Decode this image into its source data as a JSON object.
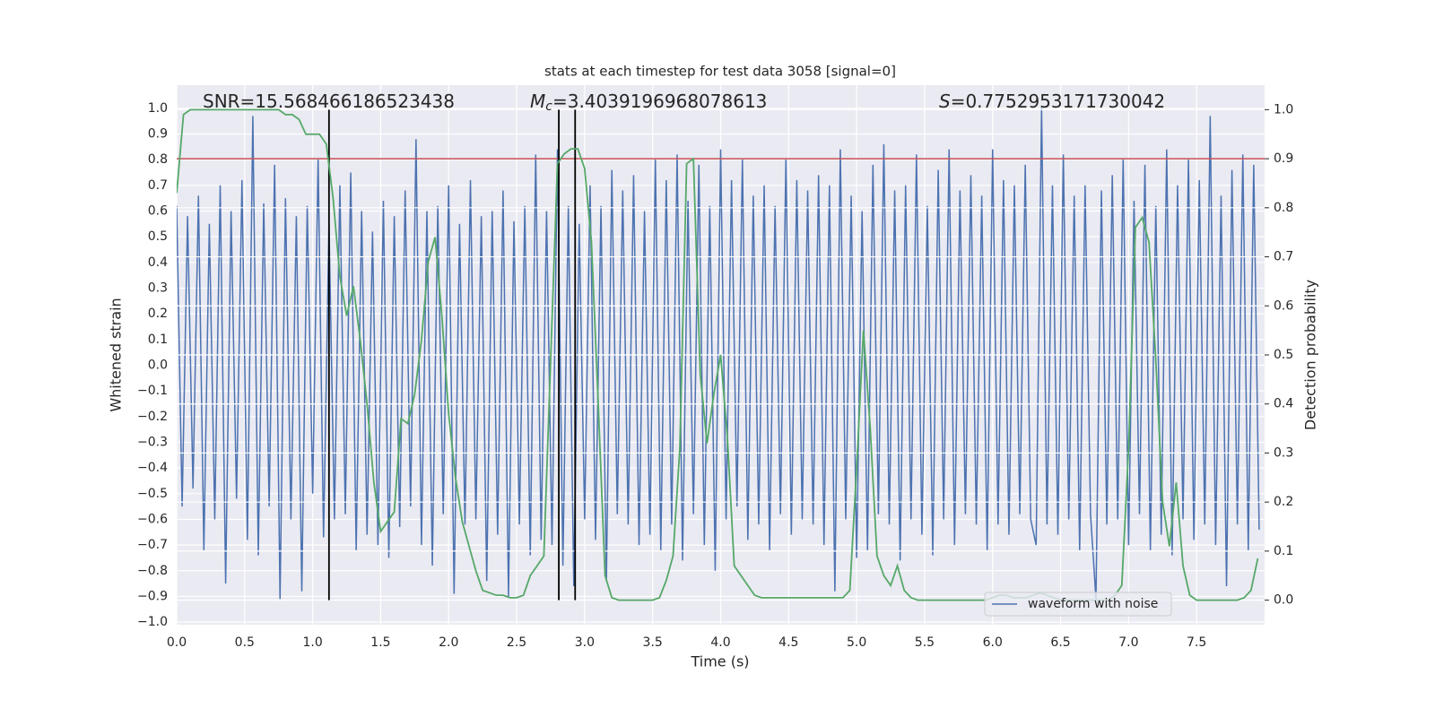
{
  "chart_data": {
    "type": "line",
    "title": "stats at each timestep for test data 3058 [signal=0]",
    "xlabel": "Time (s)",
    "ylabel": "Whitened strain",
    "y2label": "Detection probability",
    "xlim": [
      0,
      8
    ],
    "ylim": [
      -1.01,
      1.09
    ],
    "y2lim": [
      -0.05,
      1.05
    ],
    "xticks": [
      {
        "value": 0,
        "label": "0.0"
      },
      0.5,
      {
        "value": 1,
        "label": "1.0"
      },
      1.5,
      {
        "value": 2,
        "label": "2.0"
      },
      2.5,
      {
        "value": 3,
        "label": "3.0"
      },
      3.5,
      {
        "value": 4,
        "label": "4.0"
      },
      4.5,
      {
        "value": 5,
        "label": "5.0"
      },
      5.5,
      {
        "value": 6,
        "label": "6.0"
      },
      6.5,
      {
        "value": 7,
        "label": "7.0"
      },
      7.5
    ],
    "yticks": [
      {
        "value": -1,
        "label": "−1.0"
      },
      {
        "value": -0.9,
        "label": "−0.9"
      },
      {
        "value": -0.8,
        "label": "−0.8"
      },
      {
        "value": -0.7,
        "label": "−0.7"
      },
      {
        "value": -0.6,
        "label": "−0.6"
      },
      {
        "value": -0.5,
        "label": "−0.5"
      },
      {
        "value": -0.4,
        "label": "−0.4"
      },
      {
        "value": -0.3,
        "label": "−0.3"
      },
      {
        "value": -0.2,
        "label": "−0.2"
      },
      {
        "value": -0.1,
        "label": "−0.1"
      },
      {
        "value": 0,
        "label": "0.0"
      },
      0.1,
      0.2,
      0.3,
      0.4,
      0.5,
      0.6,
      0.7,
      0.8,
      0.9,
      {
        "value": 1,
        "label": "1.0"
      }
    ],
    "y2ticks": [
      {
        "value": 0,
        "label": "0.0"
      },
      0.1,
      0.2,
      0.3,
      0.4,
      0.5,
      0.6,
      0.7,
      0.8,
      0.9,
      {
        "value": 1,
        "label": "1.0"
      }
    ],
    "grid": true,
    "legend": "lower right",
    "annotations": [
      {
        "text": "SNR=15.568466186523438"
      },
      {
        "symbol": "M",
        "subscript": "c",
        "text": "=3.4039196968078613"
      },
      {
        "symbol": "S",
        "text": "=0.7752953171730042"
      }
    ],
    "hlines": [
      {
        "value": 0.9,
        "axis": "y2",
        "color": "#c44e52"
      }
    ],
    "vlines": {
      "x": [
        1.12,
        2.81,
        2.93
      ],
      "y2": [
        0,
        1
      ],
      "color": "#000000"
    },
    "series": [
      {
        "name": "waveform with noise",
        "color": "#4c72b0",
        "x": [
          0,
          0.04,
          0.08,
          0.12,
          0.16,
          0.2,
          0.24,
          0.28,
          0.32,
          0.36,
          0.4,
          0.44,
          0.48,
          0.52,
          0.56,
          0.6,
          0.64,
          0.68,
          0.72,
          0.76,
          0.8,
          0.84,
          0.88,
          0.92,
          0.96,
          1,
          1.04,
          1.08,
          1.12,
          1.16,
          1.2,
          1.24,
          1.28,
          1.32,
          1.36,
          1.4,
          1.44,
          1.48,
          1.52,
          1.56,
          1.6,
          1.64,
          1.68,
          1.72,
          1.76,
          1.8,
          1.84,
          1.88,
          1.92,
          1.96,
          2,
          2.04,
          2.08,
          2.12,
          2.16,
          2.2,
          2.24,
          2.28,
          2.32,
          2.36,
          2.4,
          2.44,
          2.48,
          2.52,
          2.56,
          2.6,
          2.64,
          2.68,
          2.72,
          2.76,
          2.8,
          2.84,
          2.88,
          2.92,
          2.96,
          3,
          3.04,
          3.08,
          3.12,
          3.16,
          3.2,
          3.24,
          3.28,
          3.32,
          3.36,
          3.4,
          3.44,
          3.48,
          3.52,
          3.56,
          3.6,
          3.64,
          3.68,
          3.72,
          3.76,
          3.8,
          3.84,
          3.88,
          3.92,
          3.96,
          4,
          4.04,
          4.08,
          4.12,
          4.16,
          4.2,
          4.24,
          4.28,
          4.32,
          4.36,
          4.4,
          4.44,
          4.48,
          4.52,
          4.56,
          4.6,
          4.64,
          4.68,
          4.72,
          4.76,
          4.8,
          4.84,
          4.88,
          4.92,
          4.96,
          5,
          5.04,
          5.08,
          5.12,
          5.16,
          5.2,
          5.24,
          5.28,
          5.32,
          5.36,
          5.4,
          5.44,
          5.48,
          5.52,
          5.56,
          5.6,
          5.64,
          5.68,
          5.72,
          5.76,
          5.8,
          5.84,
          5.88,
          5.92,
          5.96,
          6,
          6.04,
          6.08,
          6.12,
          6.16,
          6.2,
          6.24,
          6.28,
          6.32,
          6.36,
          6.4,
          6.44,
          6.48,
          6.52,
          6.56,
          6.6,
          6.64,
          6.68,
          6.72,
          6.76,
          6.8,
          6.84,
          6.88,
          6.92,
          6.96,
          7,
          7.04,
          7.08,
          7.12,
          7.16,
          7.2,
          7.24,
          7.28,
          7.32,
          7.36,
          7.4,
          7.44,
          7.48,
          7.52,
          7.56,
          7.6,
          7.64,
          7.68,
          7.72,
          7.76,
          7.8,
          7.84,
          7.88,
          7.92,
          7.96
        ],
        "values": [
          0.62,
          -0.55,
          0.58,
          -0.48,
          0.66,
          -0.72,
          0.55,
          -0.6,
          0.7,
          -0.85,
          0.6,
          -0.52,
          0.72,
          -0.68,
          0.97,
          -0.74,
          0.63,
          -0.55,
          0.78,
          -0.91,
          0.65,
          -0.6,
          0.58,
          -0.88,
          0.62,
          -0.5,
          0.8,
          -0.67,
          0.55,
          -0.6,
          0.7,
          -0.58,
          0.75,
          -0.72,
          0.6,
          -0.66,
          0.52,
          -0.7,
          0.64,
          -0.75,
          0.58,
          -0.63,
          0.68,
          -0.55,
          0.88,
          -0.7,
          0.6,
          -0.78,
          0.62,
          -0.58,
          0.7,
          -0.89,
          0.55,
          -0.62,
          0.72,
          -0.6,
          0.58,
          -0.84,
          0.6,
          -0.66,
          0.68,
          -0.9,
          0.56,
          -0.62,
          0.62,
          -0.74,
          0.82,
          -0.68,
          0.6,
          -0.7,
          0.84,
          -0.78,
          0.62,
          -0.86,
          0.55,
          -0.6,
          0.7,
          -0.68,
          0.62,
          -0.84,
          0.76,
          -0.58,
          0.68,
          -0.62,
          0.74,
          -0.7,
          0.6,
          -0.66,
          0.8,
          -0.72,
          0.72,
          -0.62,
          0.82,
          -0.76,
          0.64,
          -0.58,
          0.78,
          -0.7,
          0.62,
          -0.8,
          0.84,
          -0.6,
          0.72,
          -0.55,
          0.8,
          -0.68,
          0.66,
          -0.62,
          0.7,
          -0.72,
          0.62,
          -0.58,
          0.8,
          -0.66,
          0.72,
          -0.6,
          0.68,
          -0.62,
          0.74,
          -0.7,
          0.7,
          -0.88,
          0.84,
          -0.6,
          0.66,
          -0.75,
          0.6,
          -0.72,
          0.78,
          -0.58,
          0.86,
          -0.62,
          0.68,
          -0.76,
          0.7,
          -0.6,
          0.82,
          -0.66,
          0.62,
          -0.74,
          0.76,
          -0.6,
          0.84,
          -0.7,
          0.68,
          -0.58,
          0.74,
          -0.62,
          0.66,
          -0.72,
          0.84,
          -0.62,
          0.72,
          -0.66,
          0.7,
          -0.58,
          0.78,
          -0.6,
          -0.7,
          1.0,
          -0.62,
          0.7,
          -0.66,
          0.82,
          -0.6,
          0.66,
          -0.72,
          0.7,
          -0.58,
          -0.91,
          0.68,
          -0.62,
          0.74,
          -0.6,
          0.8,
          -0.7,
          0.64,
          -0.58,
          0.78,
          -0.72,
          0.62,
          -0.66,
          0.84,
          -0.74,
          0.7,
          -0.6,
          0.8,
          -0.68,
          0.72,
          -0.62,
          0.97,
          -0.7,
          0.66,
          -0.86,
          0.76,
          -0.62,
          0.82,
          -0.72,
          0.78,
          -0.64
        ]
      },
      {
        "color": "#55a868",
        "axis": "y2",
        "x": [
          0,
          0.05,
          0.1,
          0.15,
          0.2,
          0.25,
          0.3,
          0.35,
          0.4,
          0.45,
          0.5,
          0.55,
          0.6,
          0.65,
          0.7,
          0.75,
          0.8,
          0.85,
          0.9,
          0.95,
          1,
          1.05,
          1.1,
          1.15,
          1.2,
          1.25,
          1.3,
          1.35,
          1.4,
          1.45,
          1.5,
          1.55,
          1.6,
          1.65,
          1.7,
          1.75,
          1.8,
          1.85,
          1.9,
          1.95,
          2,
          2.05,
          2.1,
          2.15,
          2.2,
          2.25,
          2.3,
          2.35,
          2.4,
          2.45,
          2.5,
          2.55,
          2.6,
          2.65,
          2.7,
          2.75,
          2.8,
          2.85,
          2.9,
          2.95,
          3,
          3.05,
          3.1,
          3.15,
          3.2,
          3.25,
          3.3,
          3.35,
          3.4,
          3.45,
          3.5,
          3.55,
          3.6,
          3.65,
          3.7,
          3.75,
          3.8,
          3.85,
          3.9,
          3.95,
          4,
          4.05,
          4.1,
          4.15,
          4.2,
          4.25,
          4.3,
          4.35,
          4.4,
          4.45,
          4.5,
          4.55,
          4.6,
          4.65,
          4.7,
          4.75,
          4.8,
          4.85,
          4.9,
          4.95,
          5,
          5.05,
          5.1,
          5.15,
          5.2,
          5.25,
          5.3,
          5.35,
          5.4,
          5.45,
          5.5,
          5.55,
          5.6,
          5.65,
          5.7,
          5.75,
          5.8,
          5.85,
          5.9,
          5.95,
          6,
          6.05,
          6.1,
          6.15,
          6.2,
          6.25,
          6.3,
          6.35,
          6.4,
          6.45,
          6.5,
          6.55,
          6.6,
          6.65,
          6.7,
          6.75,
          6.8,
          6.85,
          6.9,
          6.95,
          7,
          7.05,
          7.1,
          7.15,
          7.2,
          7.25,
          7.3,
          7.35,
          7.4,
          7.45,
          7.5,
          7.55,
          7.6,
          7.65,
          7.7,
          7.75,
          7.8,
          7.85,
          7.9,
          7.95
        ],
        "values": [
          0.83,
          0.99,
          1.0,
          1.0,
          1.0,
          1.0,
          1.0,
          1.0,
          1.0,
          1.0,
          1.0,
          1.0,
          1.0,
          1.0,
          1.0,
          1.0,
          0.99,
          0.99,
          0.98,
          0.95,
          0.95,
          0.95,
          0.93,
          0.82,
          0.66,
          0.58,
          0.64,
          0.53,
          0.4,
          0.24,
          0.14,
          0.16,
          0.18,
          0.37,
          0.36,
          0.42,
          0.53,
          0.69,
          0.74,
          0.58,
          0.38,
          0.25,
          0.16,
          0.11,
          0.06,
          0.02,
          0.015,
          0.01,
          0.01,
          0.005,
          0.005,
          0.01,
          0.05,
          0.07,
          0.09,
          0.49,
          0.89,
          0.91,
          0.92,
          0.92,
          0.88,
          0.73,
          0.4,
          0.05,
          0.005,
          0,
          0,
          0,
          0,
          0,
          0,
          0.005,
          0.04,
          0.09,
          0.31,
          0.89,
          0.9,
          0.46,
          0.32,
          0.42,
          0.5,
          0.33,
          0.07,
          0.05,
          0.03,
          0.01,
          0.005,
          0.005,
          0.005,
          0.005,
          0.005,
          0.005,
          0.005,
          0.005,
          0.005,
          0.005,
          0.005,
          0.005,
          0.005,
          0.02,
          0.27,
          0.55,
          0.35,
          0.09,
          0.05,
          0.03,
          0.07,
          0.02,
          0.005,
          0,
          0,
          0,
          0,
          0,
          0,
          0,
          0,
          0,
          0,
          0,
          0.005,
          0.01,
          0.01,
          0.005,
          0.005,
          0.005,
          0.01,
          0.015,
          0.01,
          0.005,
          0,
          0,
          0,
          0,
          0,
          0,
          0,
          0,
          0.01,
          0.03,
          0.31,
          0.76,
          0.78,
          0.73,
          0.49,
          0.2,
          0.11,
          0.24,
          0.07,
          0.01,
          0,
          0,
          0,
          0,
          0,
          0,
          0,
          0.005,
          0.02,
          0.085
        ]
      }
    ]
  }
}
